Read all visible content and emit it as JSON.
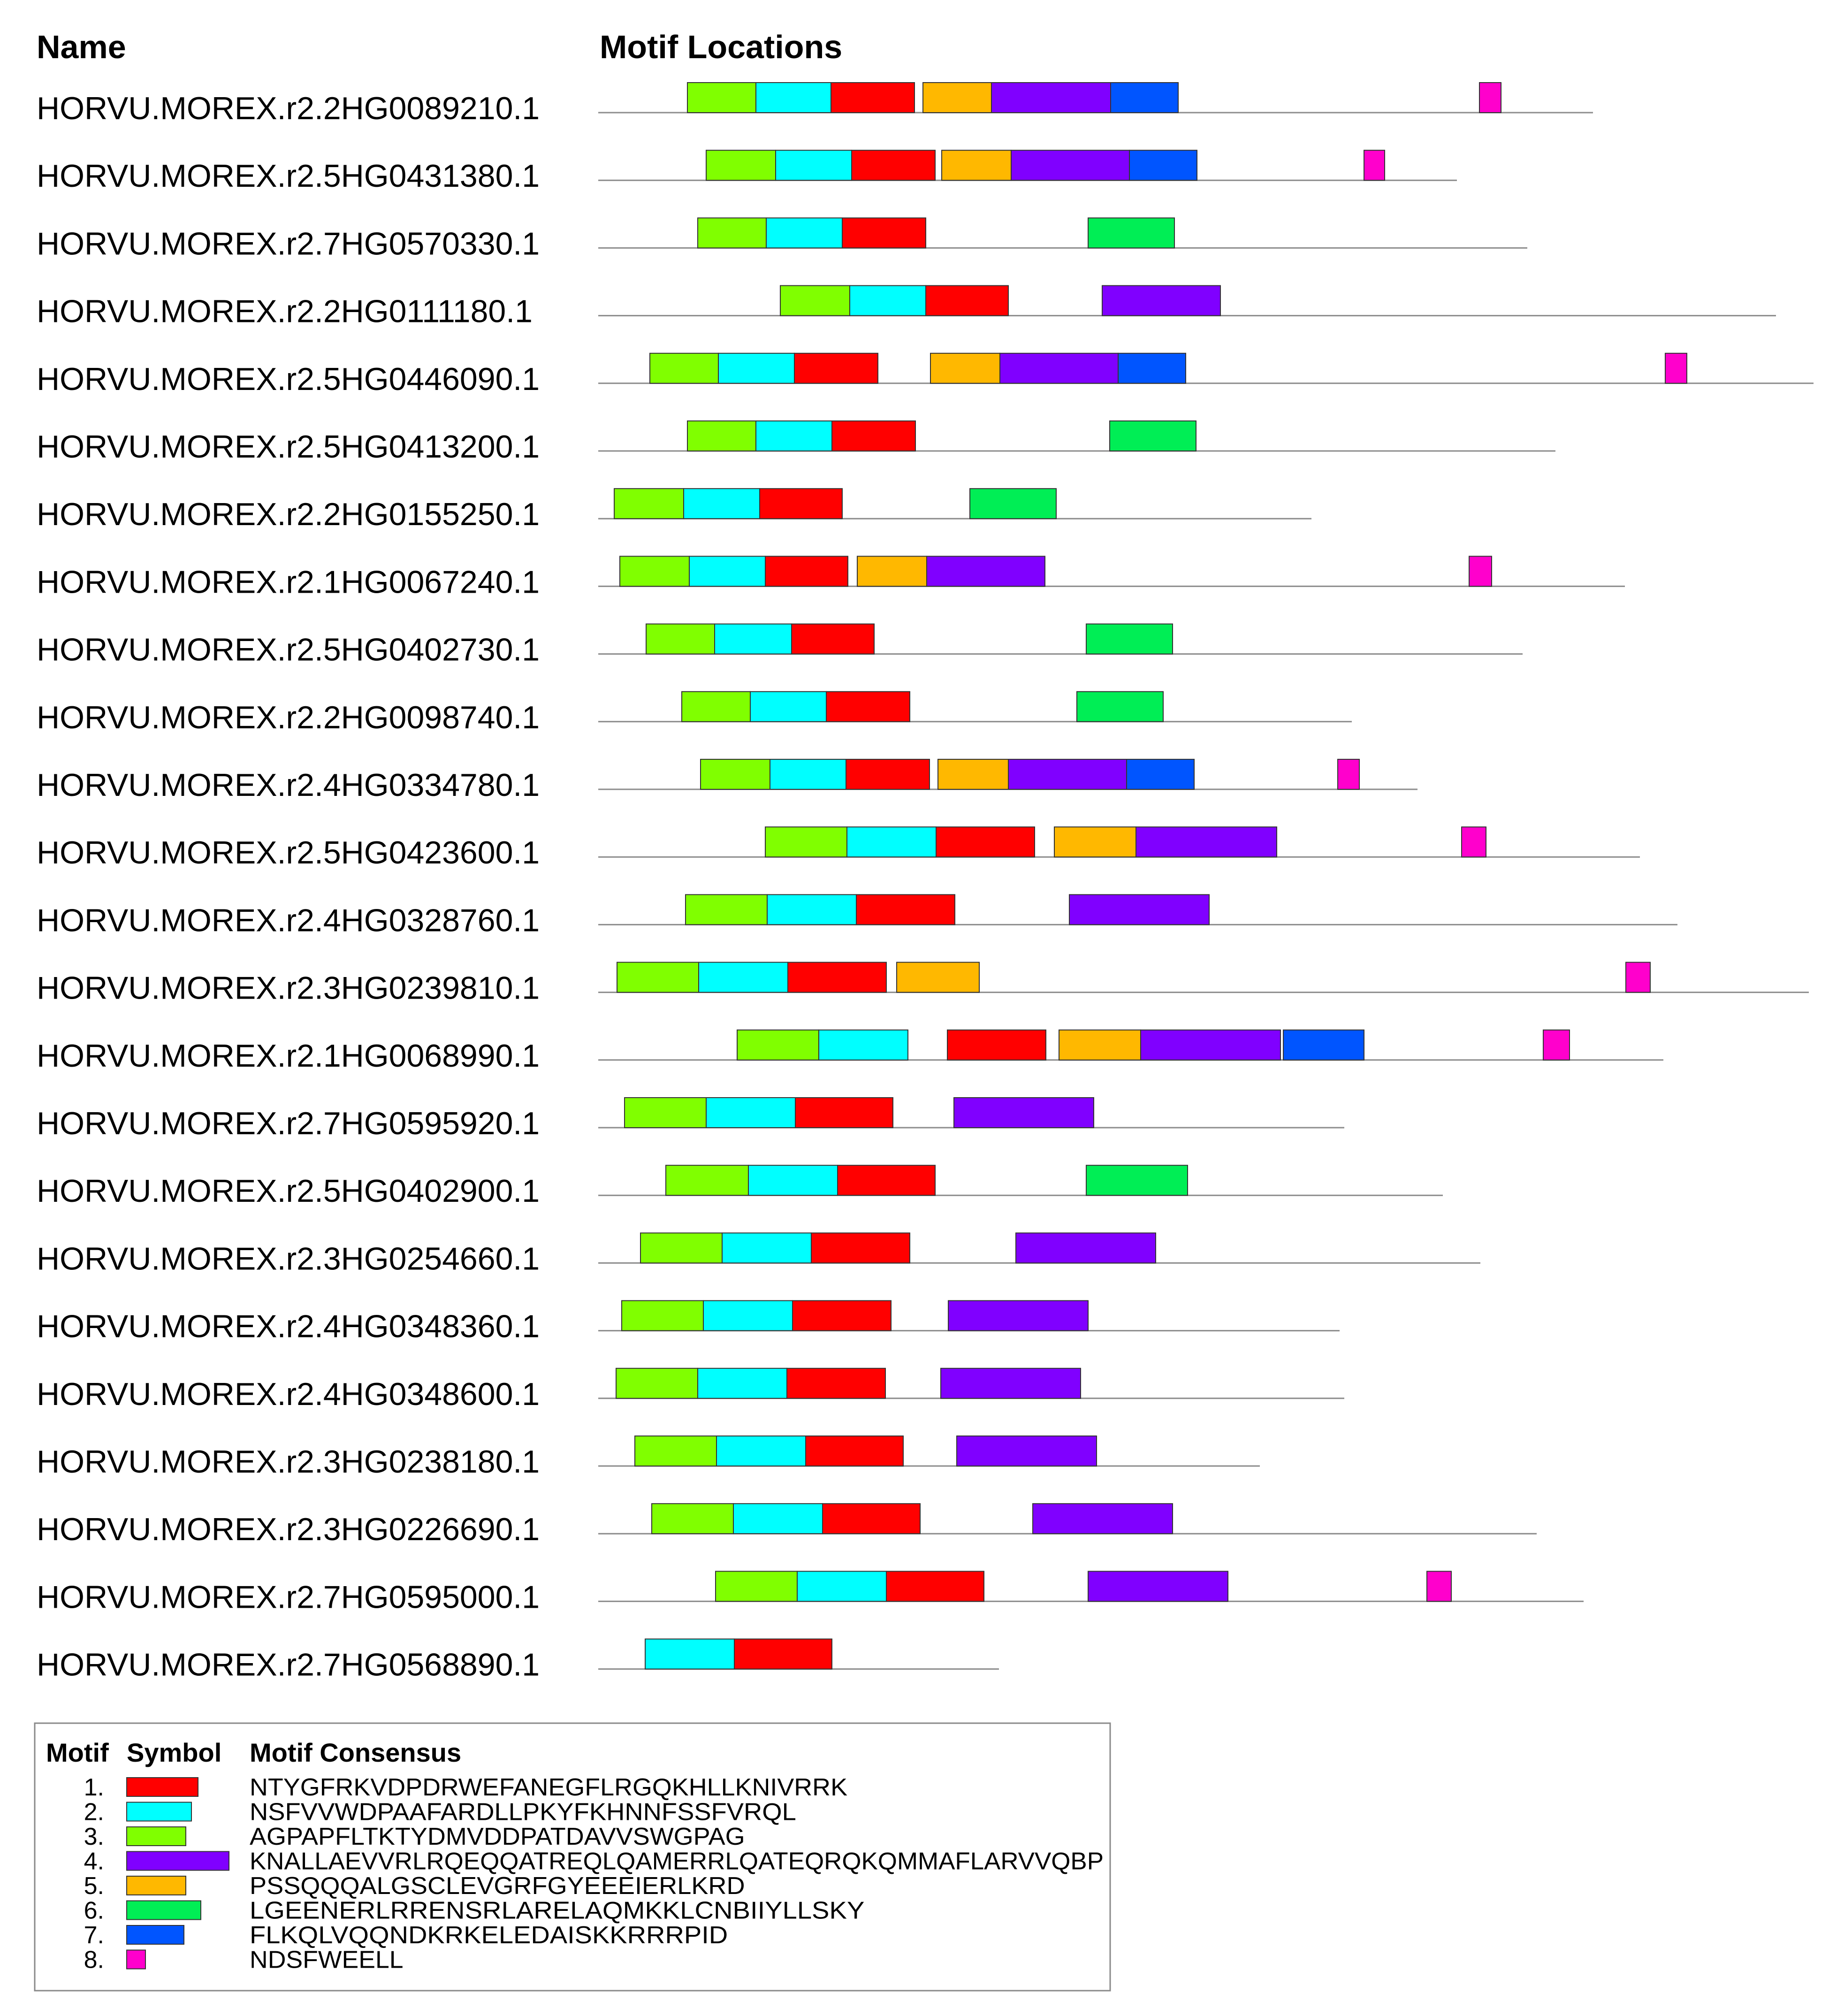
{
  "headers": {
    "name": "Name",
    "motif_locations": "Motif Locations"
  },
  "motif_colors": {
    "1": "#ff0000",
    "2": "#00ffff",
    "3": "#80ff00",
    "4": "#8000ff",
    "5": "#ffb800",
    "6": "#00ee55",
    "7": "#0055ff",
    "8": "#ff00cc"
  },
  "chart_data": {
    "type": "motif-map",
    "rows": [
      {
        "name": "HORVU.MOREX.r2.2HG0089210.1",
        "length": 1060,
        "motifs": [
          [
            3,
            95,
            168
          ],
          [
            2,
            168,
            248
          ],
          [
            1,
            248,
            337
          ],
          [
            5,
            346,
            419
          ],
          [
            4,
            419,
            546
          ],
          [
            7,
            546,
            618
          ],
          [
            8,
            939,
            962
          ]
        ]
      },
      {
        "name": "HORVU.MOREX.r2.5HG0431380.1",
        "length": 915,
        "motifs": [
          [
            3,
            115,
            189
          ],
          [
            2,
            189,
            270
          ],
          [
            1,
            270,
            359
          ],
          [
            5,
            366,
            440
          ],
          [
            4,
            440,
            566
          ],
          [
            7,
            566,
            638
          ],
          [
            8,
            816,
            838
          ]
        ]
      },
      {
        "name": "HORVU.MOREX.r2.7HG0570330.1",
        "length": 990,
        "motifs": [
          [
            3,
            106,
            179
          ],
          [
            2,
            179,
            260
          ],
          [
            1,
            260,
            349
          ],
          [
            6,
            522,
            614
          ]
        ]
      },
      {
        "name": "HORVU.MOREX.r2.2HG0111180.1",
        "length": 1255,
        "motifs": [
          [
            3,
            194,
            268
          ],
          [
            2,
            268,
            349
          ],
          [
            1,
            349,
            437
          ],
          [
            4,
            537,
            663
          ]
        ]
      },
      {
        "name": "HORVU.MOREX.r2.5HG0446090.1",
        "length": 1295,
        "motifs": [
          [
            3,
            55,
            128
          ],
          [
            2,
            128,
            209
          ],
          [
            1,
            209,
            298
          ],
          [
            5,
            354,
            428
          ],
          [
            4,
            428,
            554
          ],
          [
            7,
            554,
            626
          ],
          [
            8,
            1137,
            1160
          ]
        ]
      },
      {
        "name": "HORVU.MOREX.r2.5HG0413200.1",
        "length": 1020,
        "motifs": [
          [
            3,
            95,
            168
          ],
          [
            2,
            168,
            249
          ],
          [
            1,
            249,
            338
          ],
          [
            6,
            545,
            637
          ]
        ]
      },
      {
        "name": "HORVU.MOREX.r2.2HG0155250.1",
        "length": 760,
        "motifs": [
          [
            3,
            17,
            91
          ],
          [
            2,
            91,
            172
          ],
          [
            1,
            172,
            260
          ],
          [
            6,
            396,
            488
          ]
        ]
      },
      {
        "name": "HORVU.MOREX.r2.1HG0067240.1",
        "length": 1094,
        "motifs": [
          [
            3,
            23,
            97
          ],
          [
            2,
            97,
            178
          ],
          [
            1,
            178,
            266
          ],
          [
            5,
            276,
            350
          ],
          [
            4,
            350,
            476
          ],
          [
            8,
            928,
            952
          ]
        ]
      },
      {
        "name": "HORVU.MOREX.r2.5HG0402730.1",
        "length": 985,
        "motifs": [
          [
            3,
            51,
            124
          ],
          [
            2,
            124,
            206
          ],
          [
            1,
            206,
            294
          ],
          [
            6,
            520,
            612
          ]
        ]
      },
      {
        "name": "HORVU.MOREX.r2.2HG0098740.1",
        "length": 803,
        "motifs": [
          [
            3,
            89,
            162
          ],
          [
            2,
            162,
            243
          ],
          [
            1,
            243,
            332
          ],
          [
            6,
            510,
            602
          ]
        ]
      },
      {
        "name": "HORVU.MOREX.r2.4HG0334780.1",
        "length": 873,
        "motifs": [
          [
            3,
            109,
            183
          ],
          [
            2,
            183,
            264
          ],
          [
            1,
            264,
            353
          ],
          [
            5,
            362,
            437
          ],
          [
            4,
            437,
            563
          ],
          [
            7,
            563,
            635
          ],
          [
            8,
            788,
            811
          ]
        ]
      },
      {
        "name": "HORVU.MOREX.r2.5HG0423600.1",
        "length": 1110,
        "motifs": [
          [
            3,
            178,
            265
          ],
          [
            2,
            265,
            360
          ],
          [
            1,
            360,
            465
          ],
          [
            5,
            486,
            573
          ],
          [
            4,
            573,
            723
          ],
          [
            8,
            920,
            946
          ]
        ]
      },
      {
        "name": "HORVU.MOREX.r2.4HG0328760.1",
        "length": 1150,
        "motifs": [
          [
            3,
            93,
            180
          ],
          [
            2,
            180,
            275
          ],
          [
            1,
            275,
            380
          ],
          [
            4,
            502,
            651
          ]
        ]
      },
      {
        "name": "HORVU.MOREX.r2.3HG0239810.1",
        "length": 1290,
        "motifs": [
          [
            3,
            20,
            107
          ],
          [
            2,
            107,
            202
          ],
          [
            1,
            202,
            307
          ],
          [
            5,
            318,
            406
          ],
          [
            8,
            1095,
            1121
          ]
        ]
      },
      {
        "name": "HORVU.MOREX.r2.1HG0068990.1",
        "length": 1135,
        "motifs": [
          [
            3,
            148,
            235
          ],
          [
            2,
            235,
            330
          ],
          [
            1,
            372,
            477
          ],
          [
            5,
            491,
            578
          ],
          [
            4,
            578,
            727
          ],
          [
            7,
            730,
            816
          ],
          [
            8,
            1007,
            1035
          ]
        ]
      },
      {
        "name": "HORVU.MOREX.r2.7HG0595920.1",
        "length": 795,
        "motifs": [
          [
            3,
            28,
            115
          ],
          [
            2,
            115,
            210
          ],
          [
            1,
            210,
            314
          ],
          [
            4,
            379,
            528
          ]
        ]
      },
      {
        "name": "HORVU.MOREX.r2.5HG0402900.1",
        "length": 900,
        "motifs": [
          [
            3,
            72,
            160
          ],
          [
            2,
            160,
            255
          ],
          [
            1,
            255,
            359
          ],
          [
            6,
            520,
            628
          ]
        ]
      },
      {
        "name": "HORVU.MOREX.r2.3HG0254660.1",
        "length": 940,
        "motifs": [
          [
            3,
            45,
            132
          ],
          [
            2,
            132,
            227
          ],
          [
            1,
            227,
            332
          ],
          [
            4,
            445,
            594
          ]
        ]
      },
      {
        "name": "HORVU.MOREX.r2.4HG0348360.1",
        "length": 790,
        "motifs": [
          [
            3,
            25,
            112
          ],
          [
            2,
            112,
            207
          ],
          [
            1,
            207,
            312
          ],
          [
            4,
            373,
            522
          ]
        ]
      },
      {
        "name": "HORVU.MOREX.r2.4HG0348600.1",
        "length": 795,
        "motifs": [
          [
            3,
            19,
            106
          ],
          [
            2,
            106,
            201
          ],
          [
            1,
            201,
            306
          ],
          [
            4,
            365,
            514
          ]
        ]
      },
      {
        "name": "HORVU.MOREX.r2.3HG0238180.1",
        "length": 705,
        "motifs": [
          [
            3,
            39,
            126
          ],
          [
            2,
            126,
            221
          ],
          [
            1,
            221,
            325
          ],
          [
            4,
            382,
            531
          ]
        ]
      },
      {
        "name": "HORVU.MOREX.r2.3HG0226690.1",
        "length": 1000,
        "motifs": [
          [
            3,
            57,
            144
          ],
          [
            2,
            144,
            239
          ],
          [
            1,
            239,
            343
          ],
          [
            4,
            463,
            612
          ]
        ]
      },
      {
        "name": "HORVU.MOREX.r2.7HG0595000.1",
        "length": 1050,
        "motifs": [
          [
            3,
            125,
            212
          ],
          [
            2,
            212,
            307
          ],
          [
            1,
            307,
            411
          ],
          [
            4,
            522,
            671
          ],
          [
            8,
            883,
            909
          ]
        ]
      },
      {
        "name": "HORVU.MOREX.r2.7HG0568890.1",
        "length": 427,
        "motifs": [
          [
            2,
            50,
            145
          ],
          [
            1,
            145,
            249
          ]
        ]
      }
    ]
  },
  "legend": {
    "headers": {
      "motif": "Motif",
      "symbol": "Symbol",
      "consensus": "Motif Consensus"
    },
    "entries": [
      {
        "num": "1.",
        "motif": 1,
        "consensus": "NTYGFRKVDPDRWEFANEGFLRGQKHLLKNIVRRK"
      },
      {
        "num": "2.",
        "motif": 2,
        "consensus": "NSFVVWDPAAFARDLLPKYFKHNNFSSFVRQL"
      },
      {
        "num": "3.",
        "motif": 3,
        "consensus": "AGPAPFLTKTYDMVDDPATDAVVSWGPAG"
      },
      {
        "num": "4.",
        "motif": 4,
        "consensus": "KNALLAEVVRLRQEQQATREQLQAMERRLQATEQRQKQMMAFLARVVQBP"
      },
      {
        "num": "5.",
        "motif": 5,
        "consensus": "PSSQQQALGSCLEVGRFGYEEEIERLKRD"
      },
      {
        "num": "6.",
        "motif": 6,
        "consensus": "LGEENERLRRENSRLARELAQMKKLCNBIIYLLSKY"
      },
      {
        "num": "7.",
        "motif": 7,
        "consensus": "FLKQLVQQNDKRKELEDAISKKRRRPID"
      },
      {
        "num": "8.",
        "motif": 8,
        "consensus": "NDSFWEELL"
      }
    ]
  }
}
